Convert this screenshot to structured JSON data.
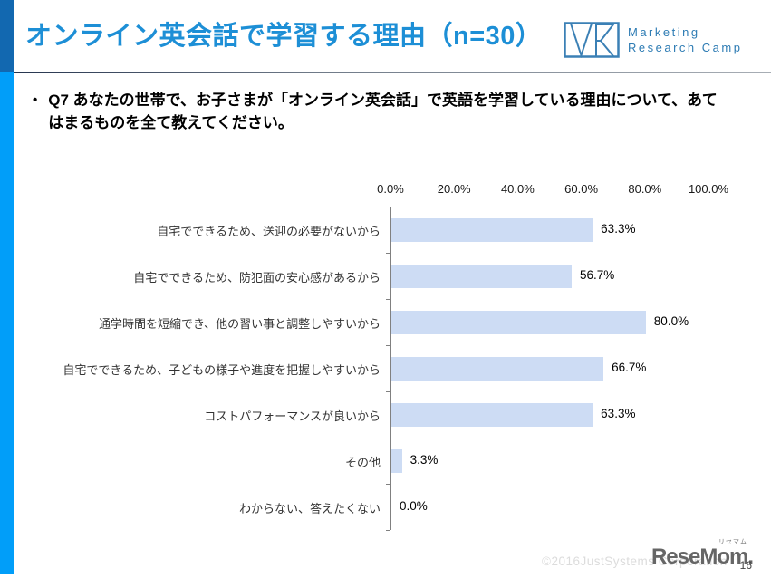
{
  "header": {
    "title": "オンライン英会話で学習する理由（n=30）",
    "logo": {
      "monogram": "MR",
      "name_line1": "Marketing",
      "name_line2": "Research Camp"
    }
  },
  "question": {
    "bullet": "•",
    "text": "Q7 あなたの世帯で、お子さまが「オンライン英会話」で英語を学習している理由について、あてはまるものを全て教えてください。"
  },
  "chart_data": {
    "type": "bar",
    "orientation": "horizontal",
    "title": "",
    "xlabel": "",
    "ylabel": "",
    "xlim": [
      0,
      100
    ],
    "grid": false,
    "legend_position": "none",
    "x_ticks": [
      "0.0%",
      "20.0%",
      "40.0%",
      "60.0%",
      "80.0%",
      "100.0%"
    ],
    "categories": [
      "自宅でできるため、送迎の必要がないから",
      "自宅でできるため、防犯面の安心感があるから",
      "通学時間を短縮でき、他の習い事と調整しやすいから",
      "自宅でできるため、子どもの様子や進度を把握しやすいから",
      "コストパフォーマンスが良いから",
      "その他",
      "わからない、答えたくない"
    ],
    "values": [
      63.3,
      56.7,
      80.0,
      66.7,
      63.3,
      3.3,
      0.0
    ],
    "value_labels": [
      "63.3%",
      "56.7%",
      "80.0%",
      "66.7%",
      "63.3%",
      "3.3%",
      "0.0%"
    ],
    "bar_color": "#cddcf4",
    "axis_color": "#808080"
  },
  "footer": {
    "copyright": "©2016JustSystems Corporation",
    "brand": "ReseMom",
    "brand_ruby": "リセマム",
    "brand_dot": ".",
    "page_number": "16"
  },
  "colors": {
    "title_blue": "#1d8fd6",
    "stripe_top_blue": "#1268b0",
    "stripe_bottom_blue": "#019ef9",
    "logo_blue": "#2e7cb4"
  }
}
